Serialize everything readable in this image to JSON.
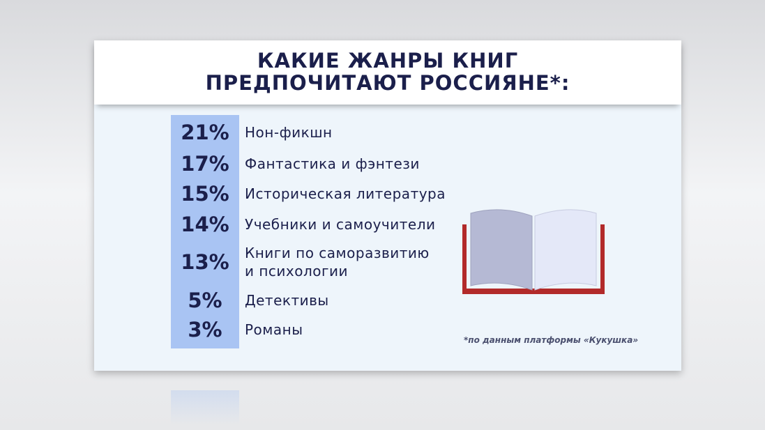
{
  "header": {
    "title_lines": [
      "КАКИЕ ЖАНРЫ КНИГ",
      "ПРЕДПОЧИТАЮТ РОССИЯНЕ*:"
    ]
  },
  "table": {
    "rows": [
      [
        "21%",
        "Нон-фикшн"
      ],
      [
        "17%",
        "Фантастика и фэнтези"
      ],
      [
        "15%",
        "Историческая литература"
      ],
      [
        "14%",
        "Учебники и самоучители"
      ],
      [
        "13%",
        "Книги по саморазвитию\nи психологии"
      ],
      [
        "5%",
        "Детективы"
      ],
      [
        "3%",
        "Романы"
      ]
    ]
  },
  "footnote": "*по данным платформы «Кукушка»"
}
